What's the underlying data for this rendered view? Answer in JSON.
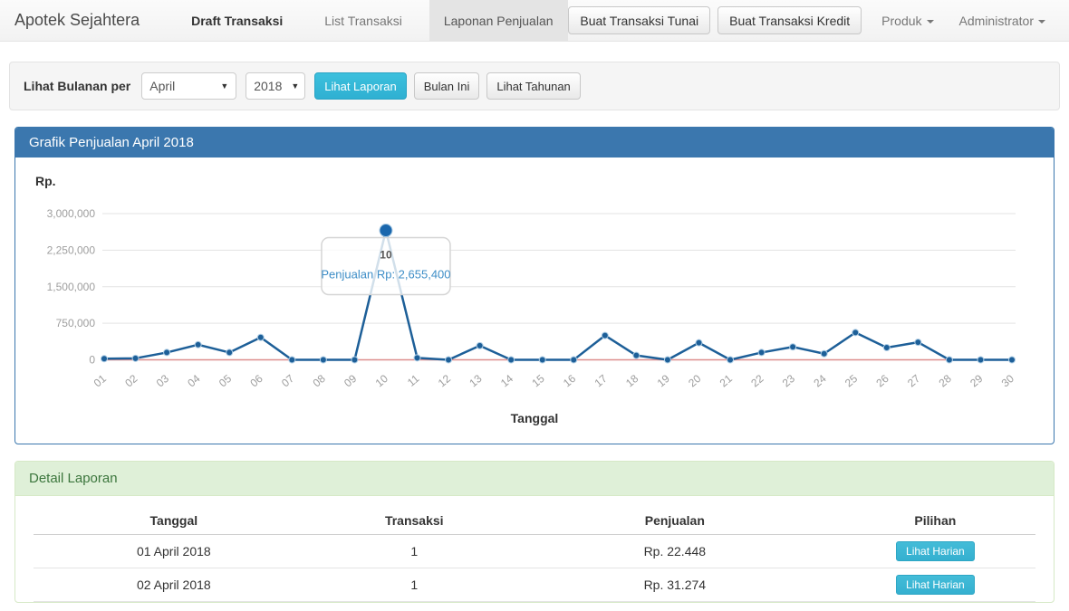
{
  "navbar": {
    "brand": "Apotek Sejahtera",
    "items": [
      {
        "label": "Draft Transaksi"
      },
      {
        "label": "List Transaksi"
      },
      {
        "label": "Laponan Penjualan"
      }
    ],
    "buttons": [
      {
        "label": "Buat Transaksi Tunai"
      },
      {
        "label": "Buat Transaksi Kredit"
      }
    ],
    "dropdowns": [
      {
        "label": "Produk"
      },
      {
        "label": "Administrator"
      }
    ]
  },
  "filter": {
    "label": "Lihat Bulanan per",
    "month_value": "April",
    "year_value": "2018",
    "submit_label": "Lihat Laporan",
    "this_month_label": "Bulan Ini",
    "yearly_label": "Lihat Tahunan"
  },
  "chart_panel": {
    "title": "Grafik Penjualan April 2018",
    "y_unit_label": "Rp.",
    "x_axis_title": "Tanggal"
  },
  "chart_data": {
    "type": "line",
    "title": "Grafik Penjualan April 2018",
    "xlabel": "Tanggal",
    "ylabel": "Rp.",
    "categories": [
      "01",
      "02",
      "03",
      "04",
      "05",
      "06",
      "07",
      "08",
      "09",
      "10",
      "11",
      "12",
      "13",
      "14",
      "15",
      "16",
      "17",
      "18",
      "19",
      "20",
      "21",
      "22",
      "23",
      "24",
      "25",
      "26",
      "27",
      "28",
      "29",
      "30"
    ],
    "values": [
      22448,
      31274,
      150000,
      310000,
      150000,
      460000,
      0,
      0,
      0,
      2655400,
      40000,
      0,
      290000,
      0,
      0,
      0,
      500000,
      90000,
      0,
      350000,
      0,
      150000,
      265000,
      125000,
      560000,
      250000,
      360000,
      0,
      0,
      0
    ],
    "ylim": [
      0,
      3000000
    ],
    "yticks": [
      750000,
      1500000,
      2250000,
      3000000
    ],
    "ytick_labels": [
      "750,000",
      "1,500,000",
      "2,250,000",
      "3,000,000"
    ],
    "zero_tick_label": "0",
    "grid": true,
    "legend": false,
    "colors": {
      "line": "#1d5f98",
      "point": "#1d5f98",
      "point_ring": "#aecde5",
      "highlight_point": "#1a67ad",
      "grid": "#e3e3e3",
      "zero_line": "#dd8e8d",
      "tick_text": "#9e9e9e",
      "tooltip_border": "#d5d5d5",
      "tooltip_title": "#555555",
      "tooltip_value": "#3e8ec7"
    },
    "tooltip": {
      "day_index": 9,
      "day": "10",
      "text": "Penjualan Rp: 2,655,400",
      "value": 2655400
    }
  },
  "detail_panel": {
    "title": "Detail Laporan",
    "table": {
      "headers": [
        "Tanggal",
        "Transaksi",
        "Penjualan",
        "Pilihan"
      ],
      "rows": [
        {
          "tanggal": "01 April 2018",
          "transaksi": "1",
          "penjualan": "Rp. 22.448",
          "action": "Lihat Harian"
        },
        {
          "tanggal": "02 April 2018",
          "transaksi": "1",
          "penjualan": "Rp. 31.274",
          "action": "Lihat Harian"
        }
      ]
    }
  }
}
